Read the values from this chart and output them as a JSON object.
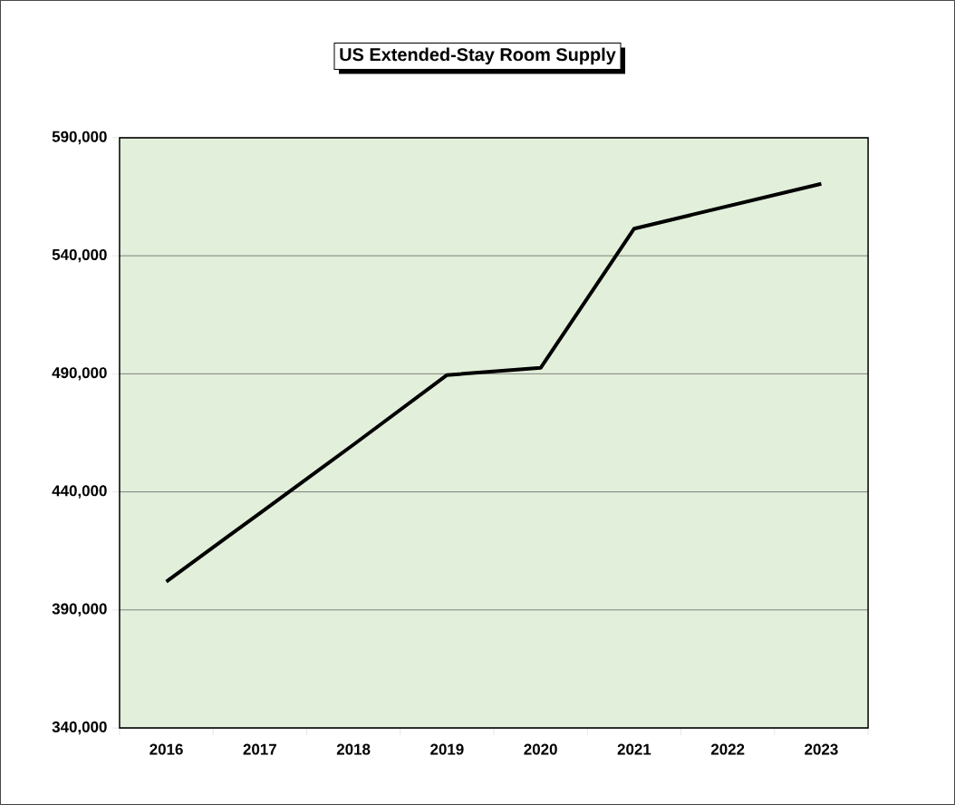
{
  "chart_data": {
    "type": "line",
    "title": "US Extended-Stay Room Supply",
    "categories": [
      "2016",
      "2017",
      "2018",
      "2019",
      "2020",
      "2021",
      "2022",
      "2023"
    ],
    "values": [
      402000,
      431000,
      460000,
      489500,
      492500,
      551500,
      561000,
      570500
    ],
    "color": "#000000",
    "ylim": [
      340000,
      590000
    ],
    "yticks": [
      {
        "value": 340000,
        "label": "340,000"
      },
      {
        "value": 390000,
        "label": "390,000"
      },
      {
        "value": 440000,
        "label": "440,000"
      },
      {
        "value": 490000,
        "label": "490,000"
      },
      {
        "value": 540000,
        "label": "540,000"
      },
      {
        "value": 590000,
        "label": "590,000"
      }
    ],
    "grid": "y",
    "marker": "none",
    "line_style": "solid"
  }
}
